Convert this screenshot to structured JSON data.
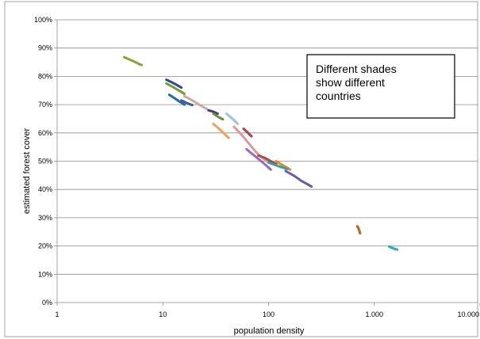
{
  "chart_data": {
    "type": "scatter",
    "title": "",
    "xlabel": "population density",
    "ylabel": "estimated forest cover",
    "x_scale": "log",
    "xlim": [
      1,
      10000
    ],
    "ylim": [
      0,
      1
    ],
    "x_ticks": [
      {
        "value": 1,
        "label": "1"
      },
      {
        "value": 10,
        "label": "10"
      },
      {
        "value": 100,
        "label": "100"
      },
      {
        "value": 1000,
        "label": "1.000"
      },
      {
        "value": 10000,
        "label": "10.000"
      }
    ],
    "y_ticks": [
      {
        "value": 0,
        "label": "0%"
      },
      {
        "value": 0.1,
        "label": "10%"
      },
      {
        "value": 0.2,
        "label": "20%"
      },
      {
        "value": 0.3,
        "label": "30%"
      },
      {
        "value": 0.4,
        "label": "40%"
      },
      {
        "value": 0.5,
        "label": "50%"
      },
      {
        "value": 0.6,
        "label": "60%"
      },
      {
        "value": 0.7,
        "label": "70%"
      },
      {
        "value": 0.8,
        "label": "80%"
      },
      {
        "value": 0.9,
        "label": "90%"
      },
      {
        "value": 1.0,
        "label": "100%"
      }
    ],
    "grid": "horizontal",
    "legend": "none",
    "annotation": "Different shades show different countries",
    "series": [
      {
        "color": "#8aa63a",
        "points": [
          [
            4.3,
            0.868
          ],
          [
            4.8,
            0.86
          ],
          [
            5.4,
            0.852
          ],
          [
            6.0,
            0.843
          ],
          [
            6.3,
            0.84
          ]
        ]
      },
      {
        "color": "#2e4a8c",
        "points": [
          [
            10.8,
            0.788
          ],
          [
            12.0,
            0.78
          ],
          [
            13.5,
            0.77
          ],
          [
            15.0,
            0.76
          ]
        ]
      },
      {
        "color": "#7b9a3a",
        "points": [
          [
            10.8,
            0.775
          ],
          [
            12.5,
            0.762
          ],
          [
            14.5,
            0.748
          ],
          [
            16.0,
            0.738
          ]
        ]
      },
      {
        "color": "#2b6a9e",
        "points": [
          [
            11.5,
            0.735
          ],
          [
            13.0,
            0.722
          ],
          [
            14.5,
            0.71
          ],
          [
            16.0,
            0.7
          ]
        ]
      },
      {
        "color": "#c9a9a6",
        "points": [
          [
            16.0,
            0.73
          ],
          [
            19.0,
            0.715
          ],
          [
            22.0,
            0.7
          ],
          [
            26.0,
            0.685
          ]
        ]
      },
      {
        "color": "#3a5f9a",
        "points": [
          [
            15.0,
            0.715
          ],
          [
            17.0,
            0.705
          ],
          [
            19.0,
            0.698
          ]
        ]
      },
      {
        "color": "#4a3f7a",
        "points": [
          [
            27.0,
            0.68
          ],
          [
            30.0,
            0.675
          ],
          [
            33.0,
            0.668
          ]
        ]
      },
      {
        "color": "#6b8f3e",
        "points": [
          [
            30.0,
            0.668
          ],
          [
            34.0,
            0.655
          ],
          [
            37.0,
            0.648
          ]
        ]
      },
      {
        "color": "#9fc4d8",
        "points": [
          [
            40.0,
            0.668
          ],
          [
            44.0,
            0.655
          ],
          [
            48.0,
            0.642
          ],
          [
            51.0,
            0.632
          ]
        ]
      },
      {
        "color": "#f0a060",
        "points": [
          [
            30.0,
            0.632
          ],
          [
            34.0,
            0.615
          ],
          [
            38.0,
            0.598
          ],
          [
            42.0,
            0.582
          ]
        ]
      },
      {
        "color": "#a64a4a",
        "points": [
          [
            58.0,
            0.615
          ],
          [
            62.0,
            0.605
          ],
          [
            66.0,
            0.595
          ],
          [
            69.0,
            0.588
          ]
        ]
      },
      {
        "color": "#d89aa0",
        "points": [
          [
            47.0,
            0.622
          ],
          [
            52.0,
            0.605
          ],
          [
            58.0,
            0.585
          ],
          [
            66.0,
            0.56
          ],
          [
            75.0,
            0.535
          ],
          [
            85.0,
            0.515
          ],
          [
            100.0,
            0.495
          ],
          [
            120.0,
            0.485
          ]
        ]
      },
      {
        "color": "#9a6abf",
        "points": [
          [
            62.0,
            0.542
          ],
          [
            72.0,
            0.522
          ],
          [
            82.0,
            0.505
          ],
          [
            95.0,
            0.485
          ],
          [
            105.0,
            0.47
          ]
        ]
      },
      {
        "color": "#a0524a",
        "points": [
          [
            80.0,
            0.52
          ],
          [
            92.0,
            0.512
          ],
          [
            105.0,
            0.5
          ],
          [
            118.0,
            0.49
          ]
        ]
      },
      {
        "color": "#d98c2a",
        "points": [
          [
            118.0,
            0.5
          ],
          [
            130.0,
            0.49
          ],
          [
            145.0,
            0.48
          ],
          [
            160.0,
            0.47
          ]
        ]
      },
      {
        "color": "#3a9bb2",
        "points": [
          [
            100.0,
            0.495
          ],
          [
            125.0,
            0.482
          ],
          [
            150.0,
            0.472
          ]
        ]
      },
      {
        "color": "#6a5aa8",
        "points": [
          [
            145.0,
            0.465
          ],
          [
            175.0,
            0.448
          ],
          [
            205.0,
            0.43
          ],
          [
            235.0,
            0.418
          ],
          [
            255.0,
            0.41
          ]
        ]
      },
      {
        "color": "#c0682a",
        "points": [
          [
            690.0,
            0.27
          ],
          [
            710.0,
            0.262
          ],
          [
            725.0,
            0.252
          ],
          [
            735.0,
            0.245
          ]
        ]
      },
      {
        "color": "#3aa7c6",
        "points": [
          [
            1380.0,
            0.198
          ],
          [
            1460.0,
            0.194
          ],
          [
            1550.0,
            0.19
          ],
          [
            1650.0,
            0.187
          ]
        ]
      }
    ]
  }
}
